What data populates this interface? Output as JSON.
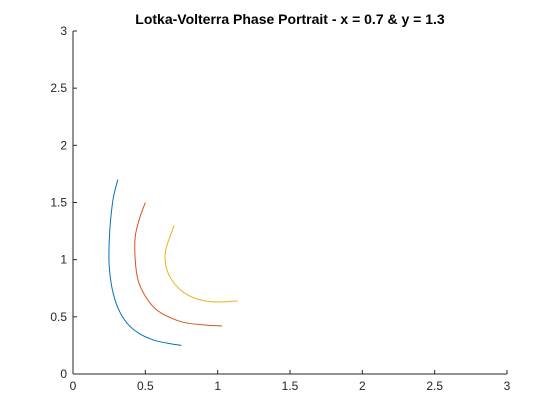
{
  "chart_data": {
    "type": "line",
    "title": "Lotka-Volterra Phase Portrait - x = 0.7 & y = 1.3",
    "xlabel": "",
    "ylabel": "",
    "xlim": [
      0,
      3
    ],
    "ylim": [
      0,
      3
    ],
    "xticks": [
      "0",
      "0.5",
      "1",
      "1.5",
      "2",
      "2.5",
      "3"
    ],
    "yticks": [
      "0",
      "0.5",
      "1",
      "1.5",
      "2",
      "2.5",
      "3"
    ],
    "grid": false,
    "series": [
      {
        "color": "#0072BD",
        "points": [
          [
            0.31,
            1.7
          ],
          [
            0.28,
            1.55
          ],
          [
            0.26,
            1.35
          ],
          [
            0.25,
            1.15
          ],
          [
            0.25,
            0.95
          ],
          [
            0.27,
            0.75
          ],
          [
            0.31,
            0.58
          ],
          [
            0.37,
            0.45
          ],
          [
            0.45,
            0.36
          ],
          [
            0.55,
            0.3
          ],
          [
            0.65,
            0.27
          ],
          [
            0.75,
            0.25
          ]
        ]
      },
      {
        "color": "#D95319",
        "points": [
          [
            0.5,
            1.5
          ],
          [
            0.46,
            1.36
          ],
          [
            0.43,
            1.2
          ],
          [
            0.43,
            1.0
          ],
          [
            0.45,
            0.82
          ],
          [
            0.5,
            0.68
          ],
          [
            0.57,
            0.57
          ],
          [
            0.66,
            0.5
          ],
          [
            0.77,
            0.45
          ],
          [
            0.9,
            0.43
          ],
          [
            1.03,
            0.42
          ]
        ]
      },
      {
        "color": "#EDB120",
        "points": [
          [
            0.7,
            1.3
          ],
          [
            0.67,
            1.2
          ],
          [
            0.64,
            1.08
          ],
          [
            0.64,
            0.96
          ],
          [
            0.67,
            0.85
          ],
          [
            0.73,
            0.75
          ],
          [
            0.81,
            0.68
          ],
          [
            0.91,
            0.64
          ],
          [
            1.02,
            0.63
          ],
          [
            1.14,
            0.64
          ]
        ]
      }
    ]
  }
}
